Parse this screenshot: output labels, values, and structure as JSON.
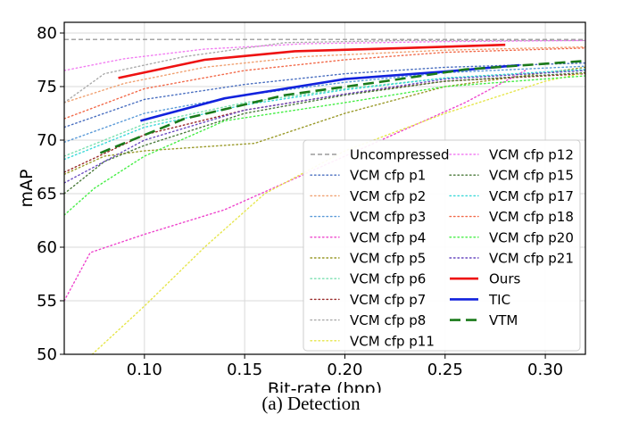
{
  "caption": "(a)  Detection",
  "chart_data": {
    "type": "line",
    "xlabel": "Bit-rate (bpp)",
    "ylabel": "mAP",
    "xlim": [
      0.06,
      0.32
    ],
    "ylim": [
      50,
      81
    ],
    "xticks": [
      0.1,
      0.15,
      0.2,
      0.25,
      0.3
    ],
    "xtick_labels": [
      "0.10",
      "0.15",
      "0.20",
      "0.25",
      "0.30"
    ],
    "yticks": [
      50,
      55,
      60,
      65,
      70,
      75,
      80
    ],
    "ytick_labels": [
      "50",
      "55",
      "60",
      "65",
      "70",
      "75",
      "80"
    ],
    "grid": true,
    "legend_position": "lower right",
    "series": [
      {
        "name": "Uncompressed",
        "color": "#888888",
        "style": "dashed",
        "width": 1.2,
        "x": [
          0.06,
          0.32
        ],
        "y": [
          79.4,
          79.4
        ]
      },
      {
        "name": "VCM cfp p1",
        "color": "#4a6fc0",
        "style": "dotted",
        "width": 1.4,
        "x": [
          0.06,
          0.1,
          0.15,
          0.2,
          0.25,
          0.32
        ],
        "y": [
          71.2,
          73.8,
          75.2,
          76.2,
          76.8,
          77.2
        ]
      },
      {
        "name": "VCM cfp p2",
        "color": "#f0a070",
        "style": "dotted",
        "width": 1.4,
        "x": [
          0.06,
          0.09,
          0.13,
          0.18,
          0.25,
          0.32
        ],
        "y": [
          73.5,
          75.3,
          76.8,
          77.8,
          78.4,
          78.7
        ]
      },
      {
        "name": "VCM cfp p3",
        "color": "#5a9ad8",
        "style": "dotted",
        "width": 1.4,
        "x": [
          0.06,
          0.1,
          0.15,
          0.2,
          0.25,
          0.32
        ],
        "y": [
          69.8,
          72.5,
          74.2,
          75.4,
          76.3,
          76.9
        ]
      },
      {
        "name": "VCM cfp p4",
        "color": "#ee44cc",
        "style": "dotted",
        "width": 1.4,
        "x": [
          0.06,
          0.073,
          0.1,
          0.14,
          0.2,
          0.26,
          0.29
        ],
        "y": [
          55.0,
          59.5,
          61.2,
          63.5,
          68.5,
          73.5,
          76.5
        ]
      },
      {
        "name": "VCM cfp p5",
        "color": "#9a9a2a",
        "style": "dotted",
        "width": 1.4,
        "x": [
          0.06,
          0.08,
          0.1,
          0.155,
          0.2,
          0.25,
          0.32
        ],
        "y": [
          66.8,
          68.5,
          69.0,
          69.7,
          72.5,
          75.0,
          76.8
        ]
      },
      {
        "name": "VCM cfp p6",
        "color": "#7ae0b0",
        "style": "dotted",
        "width": 1.4,
        "x": [
          0.06,
          0.1,
          0.15,
          0.2,
          0.25,
          0.32
        ],
        "y": [
          68.5,
          71.5,
          73.5,
          74.8,
          75.8,
          76.5
        ]
      },
      {
        "name": "VCM cfp p7",
        "color": "#9a2a2a",
        "style": "dotted",
        "width": 1.4,
        "x": [
          0.06,
          0.1,
          0.15,
          0.2,
          0.25,
          0.32
        ],
        "y": [
          67.0,
          70.5,
          72.8,
          74.3,
          75.5,
          76.2
        ]
      },
      {
        "name": "VCM cfp p8",
        "color": "#aaaaaa",
        "style": "dotted",
        "width": 1.4,
        "x": [
          0.06,
          0.08,
          0.12,
          0.17,
          0.23,
          0.32
        ],
        "y": [
          73.5,
          76.2,
          77.8,
          79.1,
          79.3,
          79.3
        ]
      },
      {
        "name": "VCM cfp p11",
        "color": "#e6e64a",
        "style": "dotted",
        "width": 1.4,
        "x": [
          0.074,
          0.1,
          0.13,
          0.16,
          0.2,
          0.25,
          0.3,
          0.32
        ],
        "y": [
          50.0,
          54.5,
          60.0,
          65.0,
          69.0,
          72.5,
          75.5,
          76.3
        ]
      },
      {
        "name": "VCM cfp p12",
        "color": "#f27ef2",
        "style": "dotted",
        "width": 1.4,
        "x": [
          0.06,
          0.09,
          0.13,
          0.18,
          0.25,
          0.32
        ],
        "y": [
          76.5,
          77.6,
          78.5,
          79.0,
          79.2,
          79.3
        ]
      },
      {
        "name": "VCM cfp p15",
        "color": "#4a7a3a",
        "style": "dotted",
        "width": 1.4,
        "x": [
          0.06,
          0.08,
          0.1,
          0.15,
          0.2,
          0.25,
          0.32
        ],
        "y": [
          65.0,
          68.0,
          69.5,
          72.5,
          74.2,
          75.5,
          76.3
        ]
      },
      {
        "name": "VCM cfp p17",
        "color": "#3ad8d8",
        "style": "dotted",
        "width": 1.4,
        "x": [
          0.06,
          0.1,
          0.15,
          0.2,
          0.25,
          0.32
        ],
        "y": [
          68.2,
          71.2,
          73.3,
          74.7,
          75.8,
          76.6
        ]
      },
      {
        "name": "VCM cfp p18",
        "color": "#f26a4a",
        "style": "dotted",
        "width": 1.4,
        "x": [
          0.06,
          0.1,
          0.15,
          0.2,
          0.25,
          0.32
        ],
        "y": [
          72.0,
          74.8,
          76.5,
          77.5,
          78.2,
          78.6
        ]
      },
      {
        "name": "VCM cfp p20",
        "color": "#44ee44",
        "style": "dotted",
        "width": 1.4,
        "x": [
          0.06,
          0.075,
          0.1,
          0.14,
          0.2,
          0.25,
          0.32
        ],
        "y": [
          63.0,
          65.5,
          68.5,
          71.8,
          73.5,
          75.0,
          76.0
        ]
      },
      {
        "name": "VCM cfp p21",
        "color": "#6a4ac0",
        "style": "dotted",
        "width": 1.4,
        "x": [
          0.06,
          0.1,
          0.15,
          0.2,
          0.25,
          0.32
        ],
        "y": [
          66.0,
          70.0,
          72.8,
          74.3,
          75.7,
          76.5
        ]
      },
      {
        "name": "Ours",
        "color": "#ee1111",
        "style": "solid",
        "width": 2.6,
        "x": [
          0.087,
          0.13,
          0.175,
          0.23,
          0.28
        ],
        "y": [
          75.8,
          77.5,
          78.3,
          78.6,
          78.9
        ]
      },
      {
        "name": "TIC",
        "color": "#1122dd",
        "style": "solid",
        "width": 2.6,
        "x": [
          0.098,
          0.14,
          0.2,
          0.25,
          0.287
        ],
        "y": [
          71.8,
          73.9,
          75.7,
          76.4,
          77.0
        ]
      },
      {
        "name": "VTM",
        "color": "#1a7a1a",
        "style": "longdash",
        "width": 2.6,
        "x": [
          0.078,
          0.12,
          0.17,
          0.22,
          0.26,
          0.32
        ],
        "y": [
          68.8,
          72.0,
          74.2,
          75.5,
          76.6,
          77.4
        ]
      }
    ]
  }
}
